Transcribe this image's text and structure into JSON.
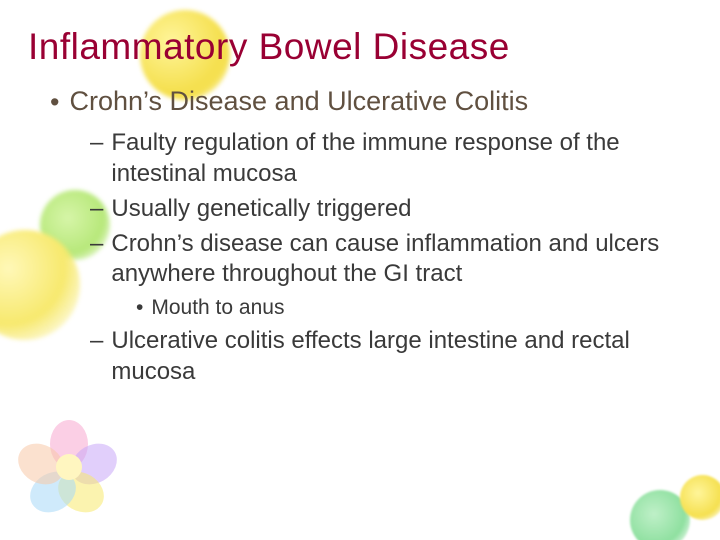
{
  "colors": {
    "title_color": "#990033",
    "lvl1_text_color": "#605040",
    "body_text_color": "#3a3a3a",
    "background": "#ffffff"
  },
  "typography": {
    "font_family": "Verdana",
    "title_fontsize_pt": 28,
    "lvl1_fontsize_pt": 20,
    "lvl2_fontsize_pt": 18,
    "lvl3_fontsize_pt": 16
  },
  "decorations": {
    "blobs": [
      {
        "name": "yellow-top-left",
        "color": "#f5e050"
      },
      {
        "name": "yellow-mid-left",
        "color": "#f7e96e"
      },
      {
        "name": "green-mid-left",
        "color": "#b7e87a"
      },
      {
        "name": "green-bottom-right",
        "color": "#8fe0a0"
      },
      {
        "name": "yellow-bottom-right",
        "color": "#f5e050"
      }
    ],
    "flower_petal_colors": [
      "#f7a8d0",
      "#c8a8f7",
      "#f7e96e",
      "#a8d8f7",
      "#f7c8a8"
    ]
  },
  "slide": {
    "title": "Inflammatory Bowel Disease",
    "lvl1": [
      {
        "bullet": "•",
        "text": "Crohn’s Disease and Ulcerative Colitis",
        "lvl2": [
          {
            "dash": "–",
            "text": "Faulty regulation of the immune response of the intestinal mucosa"
          },
          {
            "dash": "–",
            "text": "Usually genetically triggered"
          },
          {
            "dash": "–",
            "text": "Crohn’s disease can cause inflammation and ulcers anywhere throughout the GI tract",
            "lvl3": [
              {
                "bullet": "•",
                "text": "Mouth to anus"
              }
            ]
          },
          {
            "dash": "–",
            "text": "Ulcerative colitis effects large intestine and rectal mucosa"
          }
        ]
      }
    ]
  }
}
